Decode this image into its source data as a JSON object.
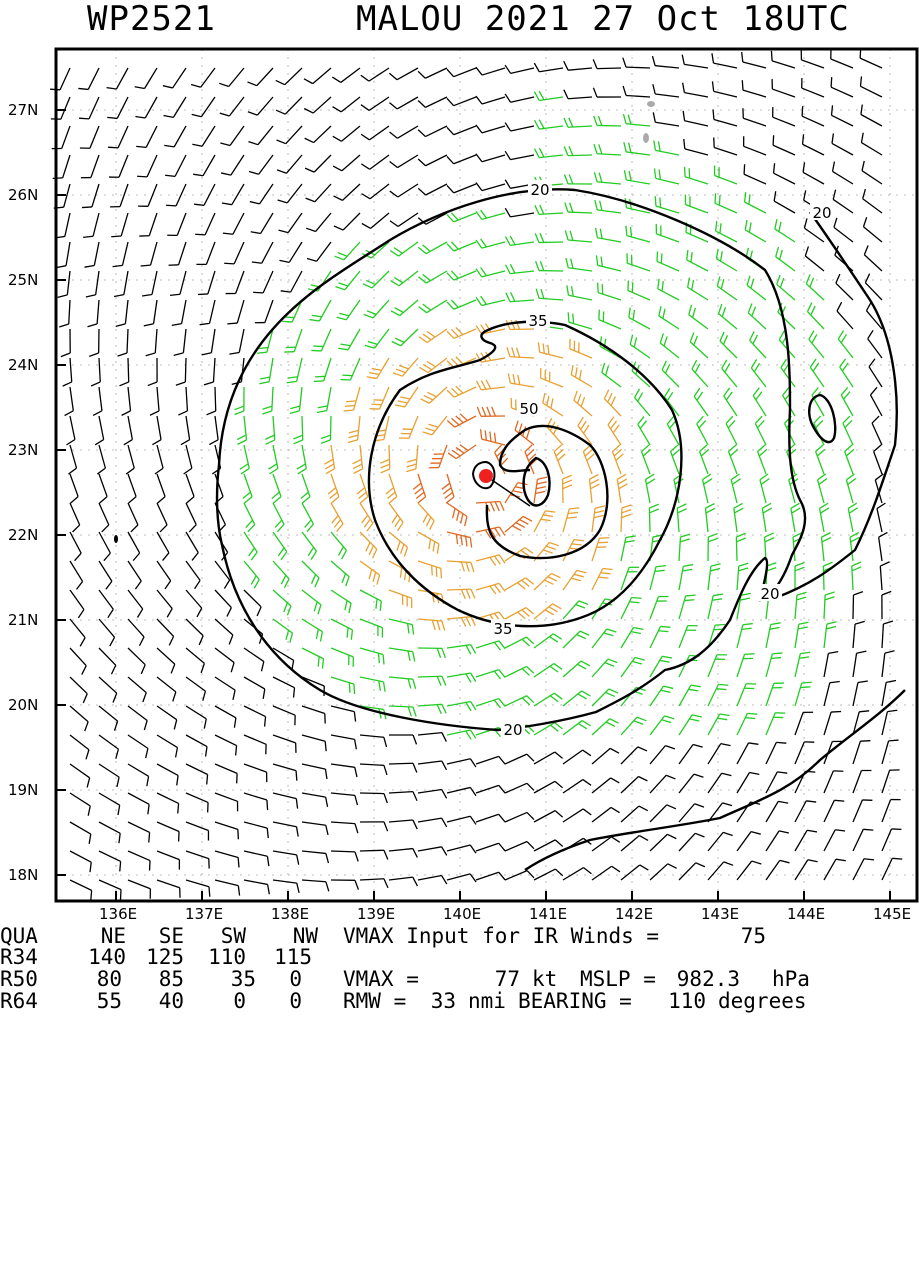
{
  "title": {
    "storm_id": "WP2521",
    "storm_info": "MALOU 2021 27 Oct 18UTC"
  },
  "map": {
    "lat_labels": [
      "27N",
      "26N",
      "25N",
      "24N",
      "23N",
      "22N",
      "21N",
      "20N",
      "19N",
      "18N"
    ],
    "lon_labels": [
      "136E",
      "137E",
      "138E",
      "139E",
      "140E",
      "141E",
      "142E",
      "143E",
      "144E",
      "145E"
    ],
    "contour_labels": [
      "20",
      "20",
      "20",
      "20",
      "35",
      "35",
      "50"
    ],
    "colors": {
      "low": "#000000",
      "gale": "#22cc22",
      "storm": "#e8a030",
      "hurricane": "#e06820",
      "center": "#ee2020",
      "land": "#aaaaaa"
    }
  },
  "stats": {
    "header": {
      "label": "QUA",
      "ne": "NE",
      "se": "SE",
      "sw": "SW",
      "nw": "NW"
    },
    "rows": [
      {
        "label": "R34",
        "ne": "140",
        "se": "125",
        "sw": "110",
        "nw": "115"
      },
      {
        "label": "R50",
        "ne": "80",
        "se": "85",
        "sw": "35",
        "nw": "0"
      },
      {
        "label": "R64",
        "ne": "55",
        "se": "40",
        "sw": "0",
        "nw": "0"
      }
    ],
    "vmax_input_text": "VMAX Input for IR Winds =",
    "vmax_input_value": "75",
    "vmax_label": "VMAX =",
    "vmax_value": "77",
    "vmax_unit": "kt",
    "mslp_label": "MSLP =",
    "mslp_value": "982.3",
    "mslp_unit": "hPa",
    "rmw_label": "RMW =",
    "rmw_value": "33",
    "rmw_unit": "nmi",
    "bearing_label": "BEARING =",
    "bearing_value": "110",
    "bearing_unit": "degrees"
  }
}
